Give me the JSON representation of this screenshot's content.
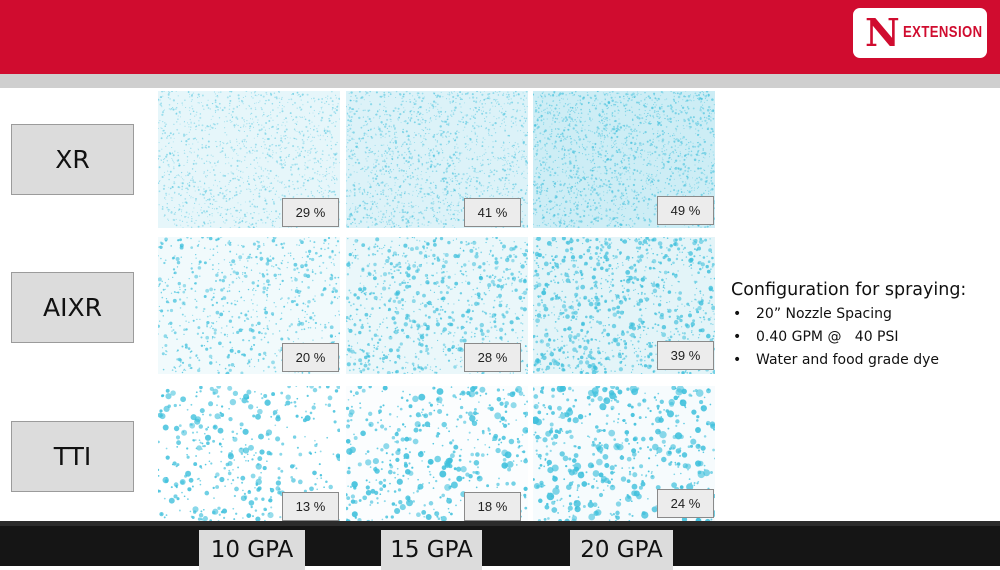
{
  "brand": {
    "mark": "N",
    "name": "EXTENSION",
    "color": "#d00c2f"
  },
  "rows": [
    {
      "label": "XR"
    },
    {
      "label": "AIXR"
    },
    {
      "label": "TTI"
    }
  ],
  "columns": [
    {
      "label": "10 GPA"
    },
    {
      "label": "15 GPA"
    },
    {
      "label": "20 GPA"
    }
  ],
  "coverage": [
    [
      "29 %",
      "41 %",
      "49 %"
    ],
    [
      "20 %",
      "28 %",
      "39 %"
    ],
    [
      "13 %",
      "18 %",
      "24 %"
    ]
  ],
  "config": {
    "title": "Configuration for spraying:",
    "items": [
      "20” Nozzle Spacing",
      "0.40 GPM @   40 PSI",
      "Water and food grade dye"
    ]
  },
  "colors": {
    "header": "#d00c2f",
    "droplet": "#3fc0dc",
    "footer": "#151515"
  }
}
